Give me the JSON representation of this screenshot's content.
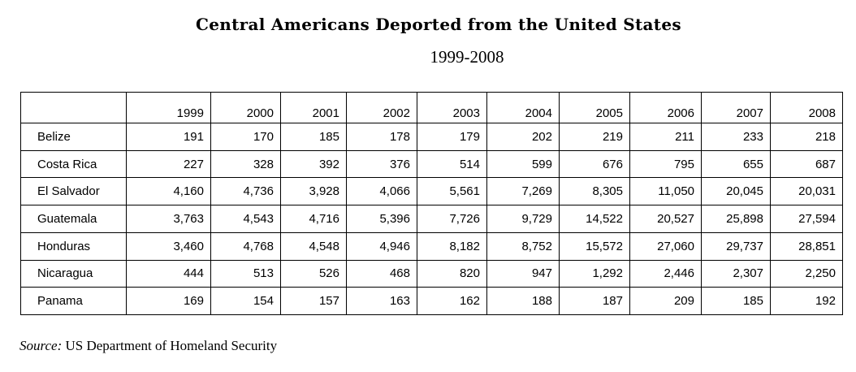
{
  "title": "Central Americans Deported from the United States",
  "subtitle": "1999-2008",
  "table": {
    "corner": "",
    "years": [
      "1999",
      "2000",
      "2001",
      "2002",
      "2003",
      "2004",
      "2005",
      "2006",
      "2007",
      "2008"
    ],
    "rows": [
      {
        "country": "Belize",
        "values": [
          "191",
          "170",
          "185",
          "178",
          "179",
          "202",
          "219",
          "211",
          "233",
          "218"
        ]
      },
      {
        "country": "Costa Rica",
        "values": [
          "227",
          "328",
          "392",
          "376",
          "514",
          "599",
          "676",
          "795",
          "655",
          "687"
        ]
      },
      {
        "country": "El Salvador",
        "values": [
          "4,160",
          "4,736",
          "3,928",
          "4,066",
          "5,561",
          "7,269",
          "8,305",
          "11,050",
          "20,045",
          "20,031"
        ]
      },
      {
        "country": "Guatemala",
        "values": [
          "3,763",
          "4,543",
          "4,716",
          "5,396",
          "7,726",
          "9,729",
          "14,522",
          "20,527",
          "25,898",
          "27,594"
        ]
      },
      {
        "country": "Honduras",
        "values": [
          "3,460",
          "4,768",
          "4,548",
          "4,946",
          "8,182",
          "8,752",
          "15,572",
          "27,060",
          "29,737",
          "28,851"
        ]
      },
      {
        "country": "Nicaragua",
        "values": [
          "444",
          "513",
          "526",
          "468",
          "820",
          "947",
          "1,292",
          "2,446",
          "2,307",
          "2,250"
        ]
      },
      {
        "country": "Panama",
        "values": [
          "169",
          "154",
          "157",
          "163",
          "162",
          "188",
          "187",
          "209",
          "185",
          "192"
        ]
      }
    ]
  },
  "source": {
    "label": "Source:",
    "text": "US Department of Homeland Security"
  }
}
